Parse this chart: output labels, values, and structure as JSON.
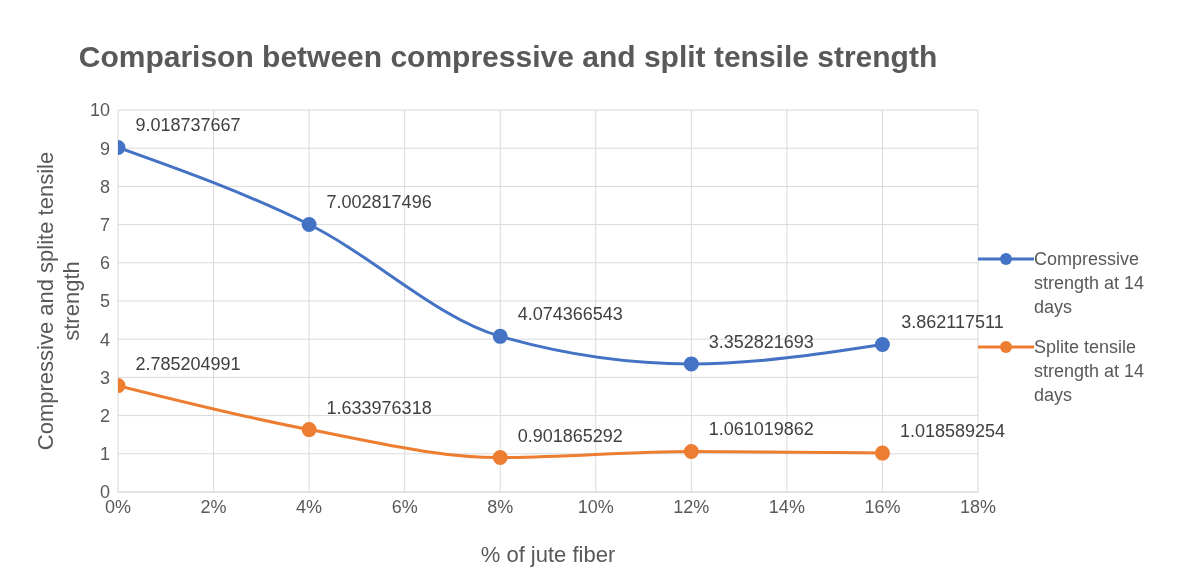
{
  "chart_data": {
    "type": "line",
    "title": "Comparison between compressive and split tensile strength",
    "xlabel": "% of jute fiber",
    "ylabel": "Compressive and splite tensile strength",
    "x": [
      0,
      4,
      8,
      12,
      16
    ],
    "series": [
      {
        "name": "Compressive strength at 14 days",
        "color": "#4472c4",
        "values": [
          9.018737667,
          7.002817496,
          4.074366543,
          3.352821693,
          3.862117511
        ]
      },
      {
        "name": "Splite tensile strength at 14 days",
        "color": "#ed7d31",
        "values": [
          2.785204991,
          1.633976318,
          0.901865292,
          1.061019862,
          1.018589254
        ]
      }
    ],
    "xlim": [
      0,
      18
    ],
    "xticks": [
      {
        "value": 0,
        "label": "0%"
      },
      {
        "value": 2,
        "label": "2%"
      },
      {
        "value": 4,
        "label": "4%"
      },
      {
        "value": 6,
        "label": "6%"
      },
      {
        "value": 8,
        "label": "8%"
      },
      {
        "value": 10,
        "label": "10%"
      },
      {
        "value": 12,
        "label": "12%"
      },
      {
        "value": 14,
        "label": "14%"
      },
      {
        "value": 16,
        "label": "16%"
      },
      {
        "value": 18,
        "label": "18%"
      }
    ],
    "ylim": [
      0,
      10
    ],
    "yticks": [
      0,
      1,
      2,
      3,
      4,
      5,
      6,
      7,
      8,
      9,
      10
    ],
    "grid": true,
    "legend": "right",
    "marker": "circle",
    "line_style": "solid",
    "data_labels": true
  }
}
